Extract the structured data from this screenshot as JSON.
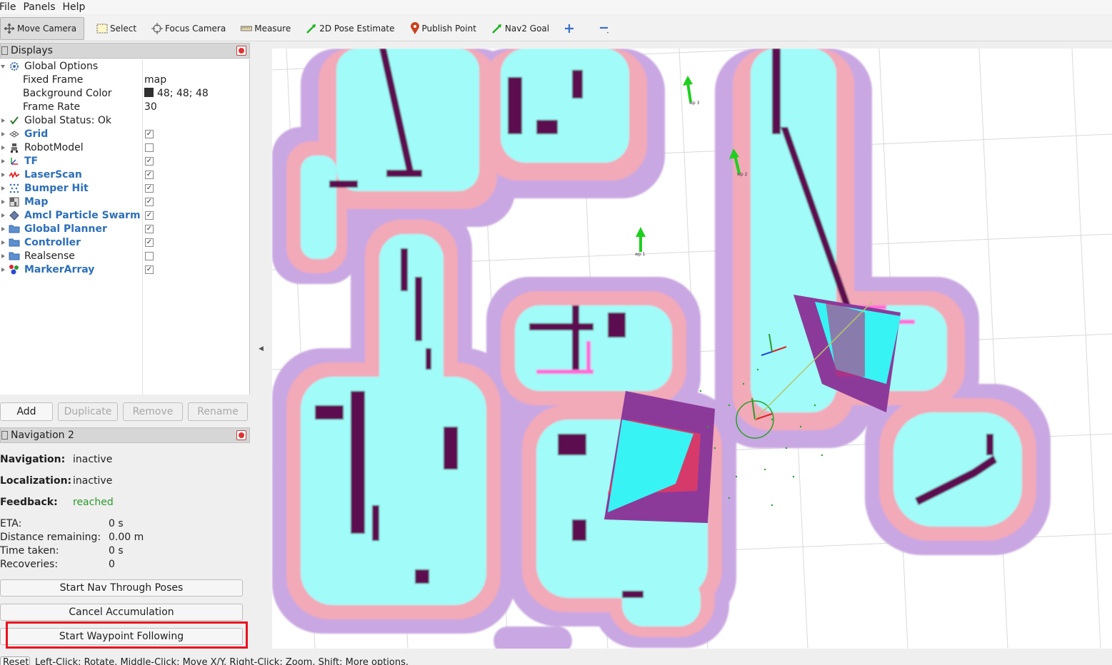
{
  "menu": [
    {
      "label": "File"
    },
    {
      "label": "Panels"
    },
    {
      "label": "Help"
    }
  ],
  "toolbar": {
    "move_camera": "Move Camera",
    "select": "Select",
    "focus_camera": "Focus Camera",
    "measure": "Measure",
    "pose_estimate": "2D Pose Estimate",
    "publish_point": "Publish Point",
    "nav2_goal": "Nav2 Goal"
  },
  "displays": {
    "title": "Displays",
    "global_options": "Global Options",
    "fixed_frame_label": "Fixed Frame",
    "fixed_frame_value": "map",
    "bg_color_label": "Background Color",
    "bg_color_value": "48; 48; 48",
    "frame_rate_label": "Frame Rate",
    "frame_rate_value": "30",
    "global_status": "Global Status: Ok",
    "items": [
      {
        "label": "Grid",
        "checked": true,
        "icon": "grid-icon"
      },
      {
        "label": "RobotModel",
        "checked": false,
        "icon": "robot-icon"
      },
      {
        "label": "TF",
        "checked": true,
        "icon": "tf-icon"
      },
      {
        "label": "LaserScan",
        "checked": true,
        "icon": "laserscan-icon"
      },
      {
        "label": "Bumper Hit",
        "checked": true,
        "icon": "bumper-icon"
      },
      {
        "label": "Map",
        "checked": true,
        "icon": "map-icon"
      },
      {
        "label": "Amcl Particle Swarm",
        "checked": true,
        "icon": "particle-icon"
      },
      {
        "label": "Global Planner",
        "checked": true,
        "icon": "folder-icon"
      },
      {
        "label": "Controller",
        "checked": true,
        "icon": "folder-icon"
      },
      {
        "label": "Realsense",
        "checked": false,
        "icon": "folder-icon"
      },
      {
        "label": "MarkerArray",
        "checked": true,
        "icon": "markerarray-icon"
      }
    ],
    "buttons": {
      "add": "Add",
      "duplicate": "Duplicate",
      "remove": "Remove",
      "rename": "Rename"
    }
  },
  "navigation": {
    "title": "Navigation 2",
    "navigation_label": "Navigation:",
    "navigation_value": "inactive",
    "localization_label": "Localization:",
    "localization_value": "inactive",
    "feedback_label": "Feedback:",
    "feedback_value": "reached",
    "eta_label": "ETA:",
    "eta_value": "0 s",
    "distance_label": "Distance remaining:",
    "distance_value": "0.00 m",
    "time_label": "Time taken:",
    "time_value": "0 s",
    "recoveries_label": "Recoveries:",
    "recoveries_value": "0",
    "btn_nav_through_poses": "Start Nav Through Poses",
    "btn_cancel_accumulation": "Cancel Accumulation",
    "btn_waypoint_following": "Start Waypoint Following"
  },
  "view": {
    "waypoint_labels": [
      "wp 3",
      "wp 2",
      "wp 1"
    ]
  },
  "status": {
    "reset": "Reset",
    "hint": "Left-Click: Rotate. Middle-Click: Move X/Y. Right-Click: Zoom. Shift: More options."
  },
  "colors": {
    "feedback_reached": "#2a9a2a",
    "highlight": "#e8131d",
    "accent_blue": "#2d6fb7"
  }
}
